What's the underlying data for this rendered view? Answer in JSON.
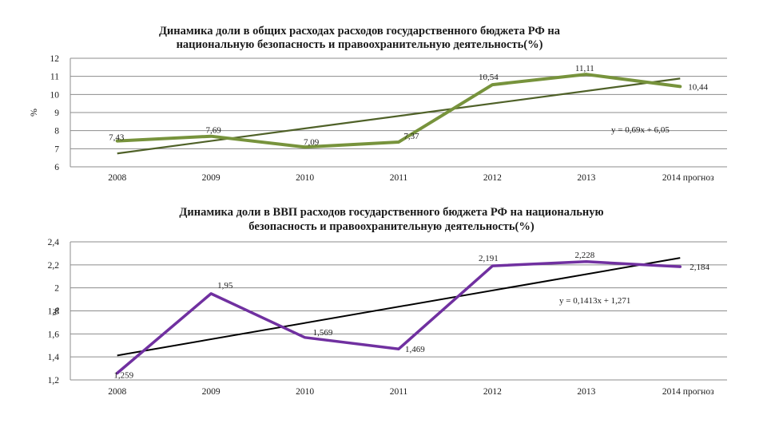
{
  "chart_data": [
    {
      "type": "line",
      "title_lines": [
        "Динамика доли в общих расходах расходов государственного бюджета РФ на",
        "национальную безопасность и правоохранительную деятельность(%)"
      ],
      "ylabel": "%",
      "categories": [
        "2008",
        "2009",
        "2010",
        "2011",
        "2012",
        "2013",
        "2014 прогноз"
      ],
      "ylim": [
        6,
        12
      ],
      "yticks": [
        "6",
        "7",
        "8",
        "9",
        "10",
        "11",
        "12"
      ],
      "grid": true,
      "series": [
        {
          "values": [
            7.43,
            7.69,
            7.09,
            7.37,
            10.54,
            11.11,
            10.44
          ],
          "labels": [
            "7,43",
            "7,69",
            "7,09",
            "7,37",
            "10,54",
            "11,11",
            "10,44"
          ],
          "color": "#77933C"
        }
      ],
      "trend": {
        "slope": 0.69,
        "intercept": 6.05,
        "equation": "y = 0,69x + 6,05",
        "color": "#4F6128"
      }
    },
    {
      "type": "line",
      "title_lines": [
        "Динамика доли в ВВП расходов государственного бюджета РФ на национальную",
        "безопасность и правоохранительную деятельность(%)"
      ],
      "ylabel": "%",
      "categories": [
        "2008",
        "2009",
        "2010",
        "2011",
        "2012",
        "2013",
        "2014 прогноз"
      ],
      "ylim": [
        1.2,
        2.4
      ],
      "yticks": [
        "1,2",
        "1,4",
        "1,6",
        "1,8",
        "2",
        "2,2",
        "2,4"
      ],
      "grid": true,
      "series": [
        {
          "values": [
            1.259,
            1.95,
            1.569,
            1.469,
            2.191,
            2.228,
            2.184
          ],
          "labels": [
            "1,259",
            "1,95",
            "1,569",
            "1,469",
            "2,191",
            "2,228",
            "2,184"
          ],
          "color": "#7030A0"
        }
      ],
      "trend": {
        "slope": 0.1413,
        "intercept": 1.271,
        "equation": "y = 0,1413x + 1,271",
        "color": "#000000"
      }
    }
  ]
}
